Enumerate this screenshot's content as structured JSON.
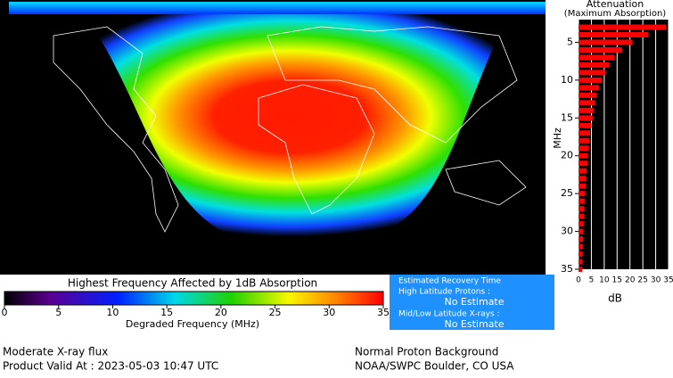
{
  "colorbar": {
    "title": "Highest Frequency Affected by 1dB Absorption",
    "xlabel": "Degraded Frequency (MHz)",
    "xlim": [
      0,
      35
    ],
    "xticks": [
      0,
      5,
      10,
      15,
      20,
      25,
      30,
      35
    ]
  },
  "recovery": {
    "title": "Estimated Recovery Time",
    "high_label": "High Latitude Protons :",
    "high_value": "No Estimate",
    "mid_label": "Mid/Low Latitude X-rays :",
    "mid_value": "No Estimate"
  },
  "footer": {
    "left": [
      "Moderate X-ray flux",
      "Product Valid At : 2023-05-03 10:47 UTC"
    ],
    "right": [
      "Normal Proton Background",
      "NOAA/SWPC Boulder, CO USA"
    ]
  },
  "chart_data": {
    "type": "bar",
    "orientation": "horizontal",
    "title": "Attenuation",
    "subtitle": "(Maximum Absorption)",
    "xlabel": "dB",
    "ylabel": "MHz",
    "y": [
      3,
      4,
      5,
      6,
      7,
      8,
      9,
      10,
      11,
      12,
      13,
      14,
      15,
      16,
      17,
      18,
      19,
      20,
      21,
      22,
      23,
      24,
      25,
      26,
      27,
      28,
      29,
      30,
      31,
      32,
      33,
      34,
      35
    ],
    "values": [
      34,
      27,
      21,
      17,
      14,
      12,
      10.5,
      9,
      8,
      7,
      6.5,
      6,
      5.5,
      5,
      4.5,
      4.2,
      4,
      3.7,
      3.5,
      3.2,
      3,
      2.8,
      2.6,
      2.5,
      2.3,
      2.2,
      2,
      1.9,
      1.8,
      1.7,
      1.6,
      1.5,
      1.4
    ],
    "color": "#ff0000",
    "xlim": [
      0,
      35
    ],
    "xticks": [
      0,
      5,
      10,
      15,
      20,
      25,
      30,
      35
    ],
    "ylim": [
      2,
      35
    ],
    "y_inverted": true,
    "yticks": [
      5,
      10,
      15,
      20,
      25,
      30,
      35
    ],
    "grid": true
  }
}
